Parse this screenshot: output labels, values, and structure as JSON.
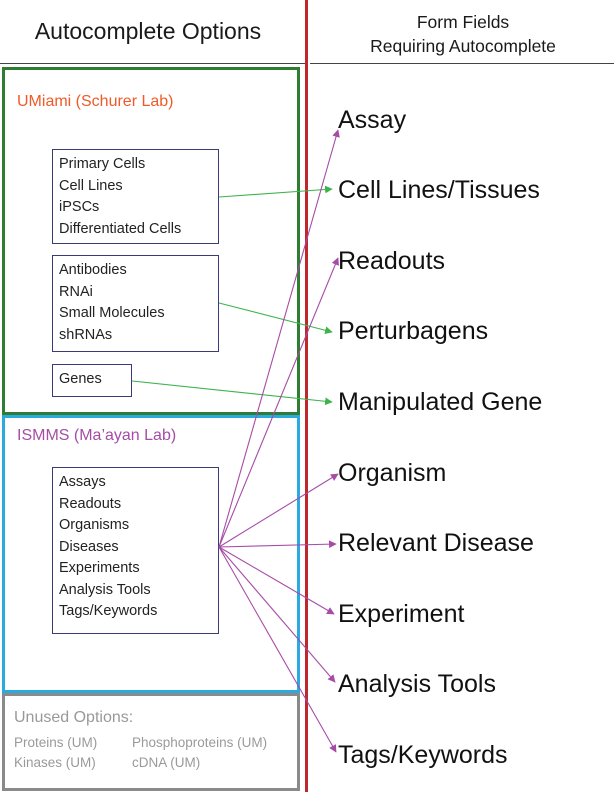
{
  "header": {
    "left_title": "Autocomplete Options",
    "right_title_line1": "Form Fields",
    "right_title_line2": "Requiring Autocomplete"
  },
  "panels": {
    "umiami": {
      "title": "UMiami (Schurer Lab)",
      "color": "#2e7d32",
      "title_color": "#f05a28",
      "groups": [
        [
          "Primary Cells",
          "Cell Lines",
          "iPSCs",
          "Differentiated Cells"
        ],
        [
          "Antibodies",
          "RNAi",
          "Small Molecules",
          "shRNAs"
        ],
        [
          "Genes"
        ]
      ]
    },
    "ismms": {
      "title": "ISMMS (Ma’ayan Lab)",
      "color": "#29abe2",
      "title_color": "#a64ca6",
      "items": [
        "Assays",
        "Readouts",
        "Organisms",
        "Diseases",
        "Experiments",
        "Analysis Tools",
        "Tags/Keywords"
      ]
    },
    "unused": {
      "title": "Unused Options:",
      "color": "#8a8a8a",
      "items": [
        "Proteins (UM)",
        "Phosphoproteins (UM)",
        "Kinases (UM)",
        "cDNA (UM)"
      ]
    }
  },
  "form_fields": [
    "Assay",
    "Cell Lines/Tissues",
    "Readouts",
    "Perturbagens",
    "Manipulated Gene",
    "Organism",
    "Relevant Disease",
    "Experiment",
    "Analysis Tools",
    "Tags/Keywords"
  ],
  "colors": {
    "divider": "#c0272d",
    "umiami_arrow": "#3cb44b",
    "ismms_arrow": "#a64ca6"
  }
}
